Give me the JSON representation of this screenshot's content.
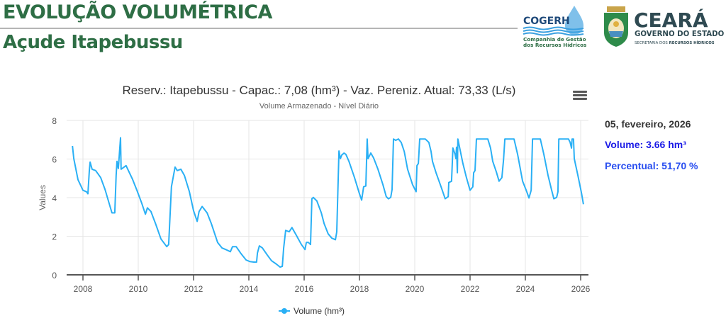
{
  "header": {
    "title": "EVOLUÇÃO VOLUMÉTRICA",
    "subtitle": "Açude Itapebussu"
  },
  "logos": {
    "cogerh": {
      "name": "COGERH",
      "line1": "Companhia de Gestão",
      "line2": "dos Recursos Hídricos"
    },
    "ceara": {
      "name": "CEARÁ",
      "line1": "GOVERNO DO ESTADO",
      "line2_prefix": "SECRETARIA DOS ",
      "line2_bold": "RECURSOS HÍDRICOS"
    }
  },
  "info_panel": {
    "date": "05, fevereiro, 2026",
    "volume": "Volume: 3.66 hm³",
    "percent": "Percentual: 51,70 %"
  },
  "menu_icon": "hamburger-menu-icon",
  "colors": {
    "title_green": "#2e6e45",
    "series": "#2ab0f5",
    "volume_text": "#1a1ae6",
    "percent_text": "#2a4ff0"
  },
  "chart_data": {
    "type": "line",
    "title": "Reserv.: Itapebussu - Capac.: 7,08 (hm³) - Vaz. Pereniz. Atual: 73,33 (L/s)",
    "subtitle": "Volume Armazenado - Nível Diário",
    "xlabel": "",
    "ylabel": "Values",
    "xlim": [
      2007.3,
      2026.3
    ],
    "ylim": [
      0,
      8
    ],
    "x_ticks": [
      "2008",
      "2010",
      "2012",
      "2014",
      "2016",
      "2018",
      "2020",
      "2022",
      "2024",
      "2026"
    ],
    "y_ticks": [
      "0",
      "2",
      "4",
      "6",
      "8"
    ],
    "grid": true,
    "legend": "bottom-center",
    "series": [
      {
        "name": "Volume (hm³)",
        "x": [
          2007.62,
          2007.67,
          2007.82,
          2008.0,
          2008.13,
          2008.18,
          2008.23,
          2008.26,
          2008.33,
          2008.46,
          2008.64,
          2008.8,
          2008.92,
          2009.05,
          2009.15,
          2009.2,
          2009.23,
          2009.28,
          2009.36,
          2009.38,
          2009.56,
          2009.62,
          2009.79,
          2009.95,
          2010.13,
          2010.26,
          2010.33,
          2010.46,
          2010.64,
          2010.82,
          2011.03,
          2011.1,
          2011.2,
          2011.33,
          2011.41,
          2011.54,
          2011.67,
          2011.85,
          2012.0,
          2012.13,
          2012.2,
          2012.31,
          2012.49,
          2012.64,
          2012.74,
          2012.87,
          2013.03,
          2013.21,
          2013.33,
          2013.41,
          2013.54,
          2013.72,
          2013.9,
          2014.03,
          2014.18,
          2014.28,
          2014.31,
          2014.38,
          2014.49,
          2014.67,
          2014.82,
          2015.0,
          2015.13,
          2015.21,
          2015.26,
          2015.33,
          2015.46,
          2015.56,
          2015.69,
          2015.9,
          2016.03,
          2016.08,
          2016.15,
          2016.23,
          2016.28,
          2016.33,
          2016.46,
          2016.62,
          2016.72,
          2016.87,
          2017.0,
          2017.13,
          2017.18,
          2017.26,
          2017.31,
          2017.36,
          2017.44,
          2017.51,
          2017.62,
          2017.82,
          2018.0,
          2018.08,
          2018.15,
          2018.23,
          2018.28,
          2018.31,
          2018.41,
          2018.51,
          2018.67,
          2018.85,
          2018.97,
          2019.05,
          2019.13,
          2019.18,
          2019.23,
          2019.31,
          2019.41,
          2019.51,
          2019.62,
          2019.74,
          2019.92,
          2020.05,
          2020.08,
          2020.13,
          2020.18,
          2020.38,
          2020.51,
          2020.59,
          2020.64,
          2020.77,
          2020.95,
          2021.1,
          2021.21,
          2021.23,
          2021.33,
          2021.38,
          2021.46,
          2021.49,
          2021.51,
          2021.54,
          2021.56,
          2021.62,
          2021.74,
          2021.87,
          2022.0,
          2022.1,
          2022.13,
          2022.18,
          2022.23,
          2022.64,
          2022.74,
          2022.82,
          2022.95,
          2023.05,
          2023.15,
          2023.21,
          2023.26,
          2023.59,
          2023.72,
          2023.9,
          2024.03,
          2024.13,
          2024.21,
          2024.26,
          2024.54,
          2024.67,
          2024.82,
          2024.95,
          2025.03,
          2025.13,
          2025.18,
          2025.21,
          2025.56,
          2025.62,
          2025.67,
          2025.69,
          2025.74,
          2025.77,
          2025.9,
          2026.03,
          2026.1
        ],
        "values": [
          6.68,
          6.02,
          4.93,
          4.38,
          4.3,
          4.2,
          5.4,
          5.84,
          5.47,
          5.4,
          5.04,
          4.42,
          3.83,
          3.21,
          3.21,
          5.15,
          5.88,
          5.51,
          7.1,
          5.47,
          5.66,
          5.47,
          4.96,
          4.38,
          3.69,
          3.14,
          3.47,
          3.28,
          2.59,
          1.86,
          1.46,
          1.57,
          4.56,
          5.58,
          5.4,
          5.47,
          5.15,
          4.31,
          3.32,
          2.77,
          3.28,
          3.54,
          3.21,
          2.66,
          2.23,
          1.68,
          1.39,
          1.28,
          1.2,
          1.46,
          1.46,
          1.09,
          0.77,
          0.69,
          0.66,
          0.66,
          1.13,
          1.5,
          1.39,
          1.02,
          0.73,
          0.55,
          0.4,
          0.44,
          1.39,
          2.3,
          2.23,
          2.45,
          2.12,
          1.57,
          1.31,
          1.68,
          1.68,
          1.57,
          3.94,
          4.01,
          3.83,
          3.21,
          2.66,
          2.12,
          1.9,
          1.82,
          2.23,
          6.42,
          6.02,
          6.2,
          6.31,
          6.24,
          5.88,
          5.04,
          4.2,
          3.87,
          4.56,
          4.6,
          7.04,
          6.02,
          6.31,
          6.06,
          5.47,
          4.67,
          4.05,
          3.94,
          4.01,
          4.42,
          7.04,
          6.97,
          7.04,
          6.86,
          6.39,
          5.47,
          4.67,
          4.31,
          5.66,
          5.77,
          7.04,
          7.04,
          6.86,
          6.39,
          5.88,
          5.29,
          4.56,
          3.94,
          4.05,
          4.78,
          4.85,
          6.57,
          6.24,
          6.02,
          6.61,
          5.29,
          7.04,
          6.61,
          5.77,
          5.04,
          4.38,
          4.56,
          5.29,
          5.4,
          7.04,
          7.04,
          6.57,
          5.88,
          5.33,
          4.85,
          5.04,
          5.95,
          7.04,
          7.04,
          6.24,
          4.85,
          4.38,
          3.98,
          4.38,
          7.04,
          7.04,
          6.24,
          5.15,
          4.38,
          3.94,
          4.01,
          4.31,
          7.04,
          7.04,
          6.86,
          6.57,
          7.04,
          7.04,
          6.02,
          5.15,
          4.23,
          3.66
        ]
      }
    ]
  }
}
